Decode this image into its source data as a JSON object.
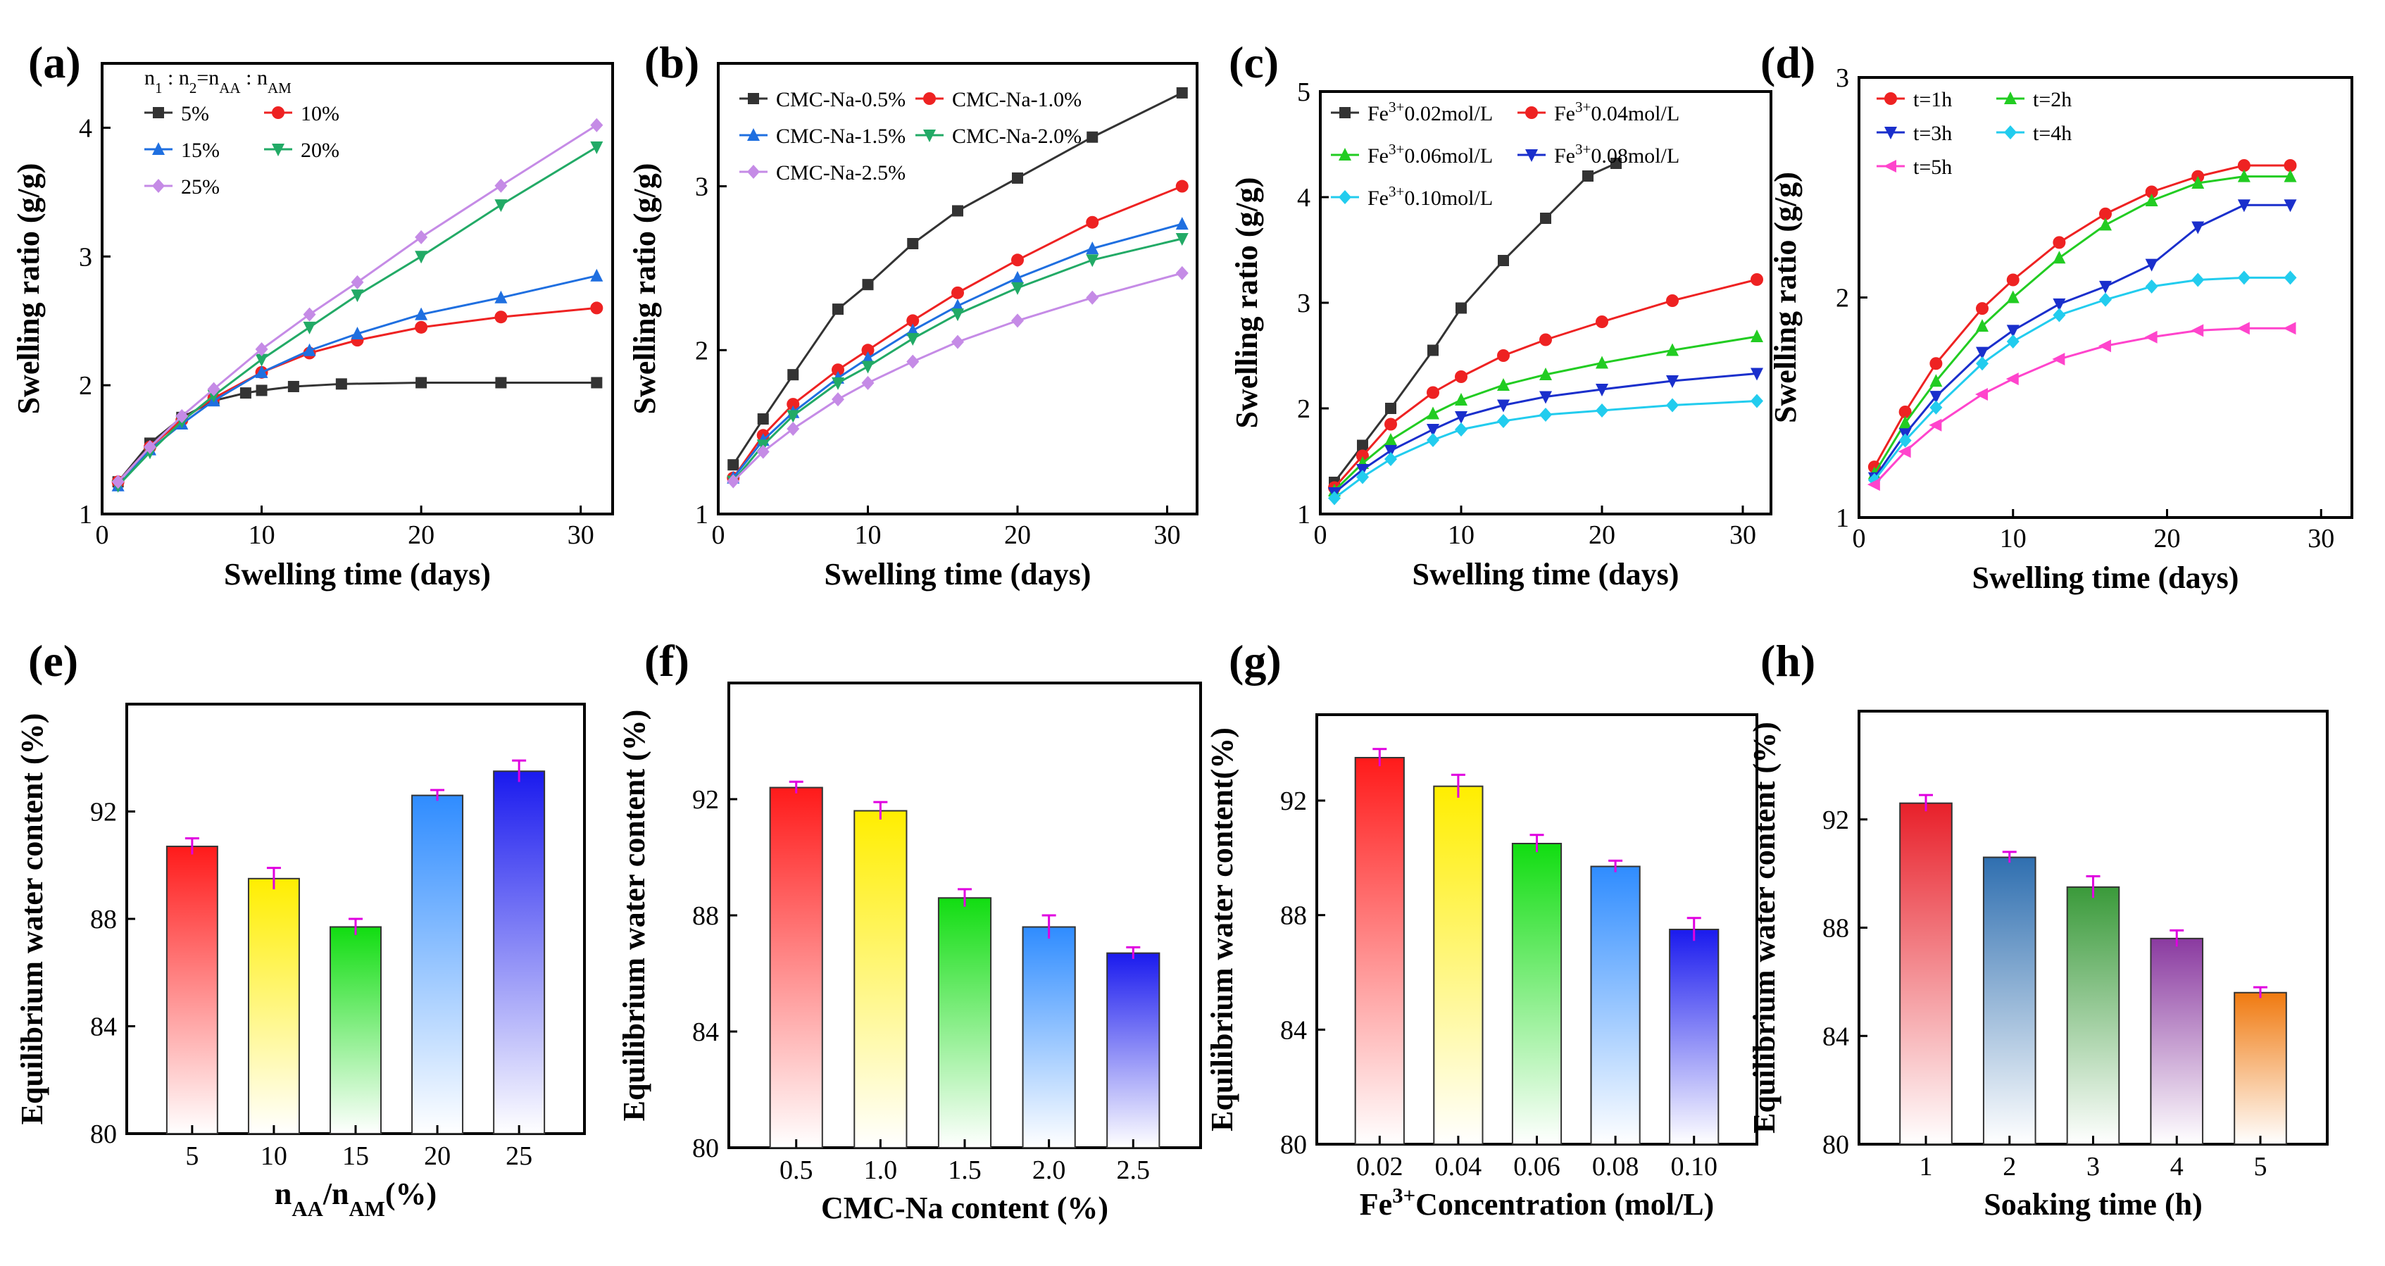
{
  "figure": {
    "panels": [
      "(a)",
      "(b)",
      "(c)",
      "(d)",
      "(e)",
      "(f)",
      "(g)",
      "(h)"
    ]
  },
  "chart_data": [
    {
      "label": "(a)",
      "type": "line",
      "title": "",
      "xlabel": "Swelling time (days)",
      "ylabel": "Swelling ratio (g/g)",
      "xlim": [
        0,
        32
      ],
      "ylim": [
        1,
        4.5
      ],
      "xticks": [
        "0",
        "10",
        "20",
        "30"
      ],
      "yticks": [
        "1",
        "2",
        "3",
        "4"
      ],
      "legend_title": "n1 : n2=nAA : nAM",
      "series": [
        {
          "name": "5%",
          "color": "#333333",
          "marker": "square",
          "x": [
            1,
            3,
            5,
            7,
            9,
            10,
            12,
            15,
            20,
            25,
            31
          ],
          "y": [
            1.25,
            1.55,
            1.75,
            1.88,
            1.94,
            1.96,
            1.99,
            2.01,
            2.02,
            2.02,
            2.02
          ]
        },
        {
          "name": "10%",
          "color": "#ee2222",
          "marker": "circle",
          "x": [
            1,
            3,
            5,
            7,
            10,
            13,
            16,
            20,
            25,
            31
          ],
          "y": [
            1.25,
            1.52,
            1.73,
            1.9,
            2.1,
            2.25,
            2.35,
            2.45,
            2.53,
            2.6
          ]
        },
        {
          "name": "15%",
          "color": "#1f6fe0",
          "marker": "triangle",
          "x": [
            1,
            3,
            5,
            7,
            10,
            13,
            16,
            20,
            25,
            31
          ],
          "y": [
            1.22,
            1.5,
            1.7,
            1.88,
            2.1,
            2.27,
            2.4,
            2.55,
            2.68,
            2.85
          ]
        },
        {
          "name": "20%",
          "color": "#22aa66",
          "marker": "tridown",
          "x": [
            1,
            3,
            5,
            7,
            10,
            13,
            16,
            20,
            25,
            31
          ],
          "y": [
            1.22,
            1.48,
            1.72,
            1.92,
            2.2,
            2.45,
            2.7,
            3.0,
            3.4,
            3.85
          ]
        },
        {
          "name": "25%",
          "color": "#c58be6",
          "marker": "diamond",
          "x": [
            1,
            3,
            5,
            7,
            10,
            13,
            16,
            20,
            25,
            31
          ],
          "y": [
            1.25,
            1.52,
            1.76,
            1.97,
            2.28,
            2.55,
            2.8,
            3.15,
            3.55,
            4.02
          ]
        }
      ]
    },
    {
      "label": "(b)",
      "type": "line",
      "title": "",
      "xlabel": "Swelling time (days)",
      "ylabel": "Swelling ratio (g/g)",
      "xlim": [
        0,
        32
      ],
      "ylim": [
        1,
        3.75
      ],
      "xticks": [
        "0",
        "10",
        "20",
        "30"
      ],
      "yticks": [
        "1",
        "2",
        "3"
      ],
      "series": [
        {
          "name": "CMC-Na-0.5%",
          "color": "#333333",
          "marker": "square",
          "x": [
            1,
            3,
            5,
            8,
            10,
            13,
            16,
            20,
            25,
            31
          ],
          "y": [
            1.3,
            1.58,
            1.85,
            2.25,
            2.4,
            2.65,
            2.85,
            3.05,
            3.3,
            3.57
          ]
        },
        {
          "name": "CMC-Na-1.0%",
          "color": "#ee2222",
          "marker": "circle",
          "x": [
            1,
            3,
            5,
            8,
            10,
            13,
            16,
            20,
            25,
            31
          ],
          "y": [
            1.22,
            1.48,
            1.67,
            1.88,
            2.0,
            2.18,
            2.35,
            2.55,
            2.78,
            3.0
          ]
        },
        {
          "name": "CMC-Na-1.5%",
          "color": "#1f6fe0",
          "marker": "triangle",
          "x": [
            1,
            3,
            5,
            8,
            10,
            13,
            16,
            20,
            25,
            31
          ],
          "y": [
            1.22,
            1.45,
            1.62,
            1.83,
            1.95,
            2.12,
            2.27,
            2.44,
            2.62,
            2.77
          ]
        },
        {
          "name": "CMC-Na-2.0%",
          "color": "#22aa66",
          "marker": "tridown",
          "x": [
            1,
            3,
            5,
            8,
            10,
            13,
            16,
            20,
            25,
            31
          ],
          "y": [
            1.2,
            1.42,
            1.6,
            1.8,
            1.9,
            2.07,
            2.22,
            2.38,
            2.55,
            2.68
          ]
        },
        {
          "name": "CMC-Na-2.5%",
          "color": "#c58be6",
          "marker": "diamond",
          "x": [
            1,
            3,
            5,
            8,
            10,
            13,
            16,
            20,
            25,
            31
          ],
          "y": [
            1.2,
            1.38,
            1.52,
            1.7,
            1.8,
            1.93,
            2.05,
            2.18,
            2.32,
            2.47
          ]
        }
      ]
    },
    {
      "label": "(c)",
      "type": "line",
      "title": "",
      "xlabel": "Swelling time (days)",
      "ylabel": "Swelling ratio (g/g)",
      "xlim": [
        0,
        32
      ],
      "ylim": [
        1,
        5
      ],
      "xticks": [
        "0",
        "10",
        "20",
        "30"
      ],
      "yticks": [
        "1",
        "2",
        "3",
        "4",
        "5"
      ],
      "series": [
        {
          "name": "Fe3+0.02mol/L",
          "color": "#333333",
          "marker": "square",
          "x": [
            1,
            3,
            5,
            8,
            10,
            13,
            16,
            19,
            21
          ],
          "y": [
            1.3,
            1.65,
            2.0,
            2.55,
            2.95,
            3.4,
            3.8,
            4.2,
            4.32
          ]
        },
        {
          "name": "Fe3+0.04mol/L",
          "color": "#ee2222",
          "marker": "circle",
          "x": [
            1,
            3,
            5,
            8,
            10,
            13,
            16,
            20,
            25,
            31
          ],
          "y": [
            1.25,
            1.55,
            1.85,
            2.15,
            2.3,
            2.5,
            2.65,
            2.82,
            3.02,
            3.22
          ]
        },
        {
          "name": "Fe3+0.06mol/L",
          "color": "#22cc22",
          "marker": "triangle",
          "x": [
            1,
            3,
            5,
            8,
            10,
            13,
            16,
            20,
            25,
            31
          ],
          "y": [
            1.22,
            1.48,
            1.7,
            1.95,
            2.08,
            2.22,
            2.32,
            2.43,
            2.55,
            2.68
          ]
        },
        {
          "name": "Fe3+0.08mol/L",
          "color": "#1a2fcc",
          "marker": "tridown",
          "x": [
            1,
            3,
            5,
            8,
            10,
            13,
            16,
            20,
            25,
            31
          ],
          "y": [
            1.2,
            1.42,
            1.6,
            1.8,
            1.92,
            2.03,
            2.11,
            2.18,
            2.26,
            2.33
          ]
        },
        {
          "name": "Fe3+0.10mol/L",
          "color": "#22ccee",
          "marker": "diamond",
          "x": [
            1,
            3,
            5,
            8,
            10,
            13,
            16,
            20,
            25,
            31
          ],
          "y": [
            1.15,
            1.35,
            1.52,
            1.7,
            1.8,
            1.88,
            1.94,
            1.98,
            2.03,
            2.07
          ]
        }
      ]
    },
    {
      "label": "(d)",
      "type": "line",
      "title": "",
      "xlabel": "Swelling time (days)",
      "ylabel": "Swelling ratio (g/g)",
      "xlim": [
        0,
        32
      ],
      "ylim": [
        1,
        3
      ],
      "xticks": [
        "0",
        "10",
        "20",
        "30"
      ],
      "yticks": [
        "1",
        "2",
        "3"
      ],
      "series": [
        {
          "name": "t=1h",
          "color": "#ee2222",
          "marker": "circle",
          "x": [
            1,
            3,
            5,
            8,
            10,
            13,
            16,
            19,
            22,
            25,
            28
          ],
          "y": [
            1.23,
            1.48,
            1.7,
            1.95,
            2.08,
            2.25,
            2.38,
            2.48,
            2.55,
            2.6,
            2.6
          ]
        },
        {
          "name": "t=2h",
          "color": "#22cc22",
          "marker": "triangle",
          "x": [
            1,
            3,
            5,
            8,
            10,
            13,
            16,
            19,
            22,
            25,
            28
          ],
          "y": [
            1.2,
            1.43,
            1.62,
            1.87,
            2.0,
            2.18,
            2.33,
            2.44,
            2.52,
            2.55,
            2.55
          ]
        },
        {
          "name": "t=3h",
          "color": "#1a2fcc",
          "marker": "tridown",
          "x": [
            1,
            3,
            5,
            8,
            10,
            13,
            16,
            19,
            22,
            25,
            28
          ],
          "y": [
            1.18,
            1.38,
            1.55,
            1.75,
            1.85,
            1.97,
            2.05,
            2.15,
            2.32,
            2.42,
            2.42
          ]
        },
        {
          "name": "t=4h",
          "color": "#22ccee",
          "marker": "diamond",
          "x": [
            1,
            3,
            5,
            8,
            10,
            13,
            16,
            19,
            22,
            25,
            28
          ],
          "y": [
            1.17,
            1.35,
            1.5,
            1.7,
            1.8,
            1.92,
            1.99,
            2.05,
            2.08,
            2.09,
            2.09
          ]
        },
        {
          "name": "t=5h",
          "color": "#ff44cc",
          "marker": "triangle-left",
          "x": [
            1,
            3,
            5,
            8,
            10,
            13,
            16,
            19,
            22,
            25,
            28
          ],
          "y": [
            1.15,
            1.3,
            1.42,
            1.56,
            1.63,
            1.72,
            1.78,
            1.82,
            1.85,
            1.86,
            1.86
          ]
        }
      ]
    },
    {
      "label": "(e)",
      "type": "bar",
      "title": "",
      "xlabel": "nAA/nAM(%)",
      "ylabel": "Equilibrium water content (%)",
      "ylim": [
        80,
        96
      ],
      "yticks": [
        "80",
        "84",
        "88",
        "92"
      ],
      "categories": [
        "5",
        "10",
        "15",
        "20",
        "25"
      ],
      "values": [
        90.7,
        89.5,
        87.7,
        92.6,
        93.5
      ],
      "errors": [
        0.3,
        0.4,
        0.3,
        0.2,
        0.4
      ],
      "colors": [
        "#ff1a1a",
        "#ffee00",
        "#11dd11",
        "#2f8cff",
        "#1a1aee"
      ]
    },
    {
      "label": "(f)",
      "type": "bar",
      "title": "",
      "xlabel": "CMC-Na content (%)",
      "ylabel": "Equilibrium water content (%)",
      "ylim": [
        80,
        96
      ],
      "yticks": [
        "80",
        "84",
        "88",
        "92"
      ],
      "categories": [
        "0.5",
        "1.0",
        "1.5",
        "2.0",
        "2.5"
      ],
      "values": [
        92.4,
        91.6,
        88.6,
        87.6,
        86.7
      ],
      "errors": [
        0.2,
        0.3,
        0.3,
        0.4,
        0.2
      ],
      "colors": [
        "#ff1a1a",
        "#ffee00",
        "#11dd11",
        "#2f8cff",
        "#1a1aee"
      ]
    },
    {
      "label": "(g)",
      "type": "bar",
      "title": "",
      "xlabel": "Fe3+Concentration (mol/L)",
      "ylabel": "Equilibrium water content(%)",
      "ylim": [
        80,
        95
      ],
      "yticks": [
        "80",
        "84",
        "88",
        "92"
      ],
      "categories": [
        "0.02",
        "0.04",
        "0.06",
        "0.08",
        "0.10"
      ],
      "values": [
        93.5,
        92.5,
        90.5,
        89.7,
        87.5
      ],
      "errors": [
        0.3,
        0.4,
        0.3,
        0.2,
        0.4
      ],
      "colors": [
        "#ff1a1a",
        "#ffee00",
        "#11dd11",
        "#2f8cff",
        "#1a1aee"
      ]
    },
    {
      "label": "(h)",
      "type": "bar",
      "title": "",
      "xlabel": "Soaking time (h)",
      "ylabel": "Equilibrium water content (%)",
      "ylim": [
        80,
        96
      ],
      "yticks": [
        "80",
        "84",
        "88",
        "92"
      ],
      "categories": [
        "1",
        "2",
        "3",
        "4",
        "5"
      ],
      "values": [
        92.6,
        90.6,
        89.5,
        87.6,
        85.6
      ],
      "errors": [
        0.3,
        0.2,
        0.4,
        0.3,
        0.2
      ],
      "colors": [
        "#e8202a",
        "#2f6fb0",
        "#3a9a3a",
        "#8a3aa0",
        "#f07a10"
      ]
    }
  ]
}
